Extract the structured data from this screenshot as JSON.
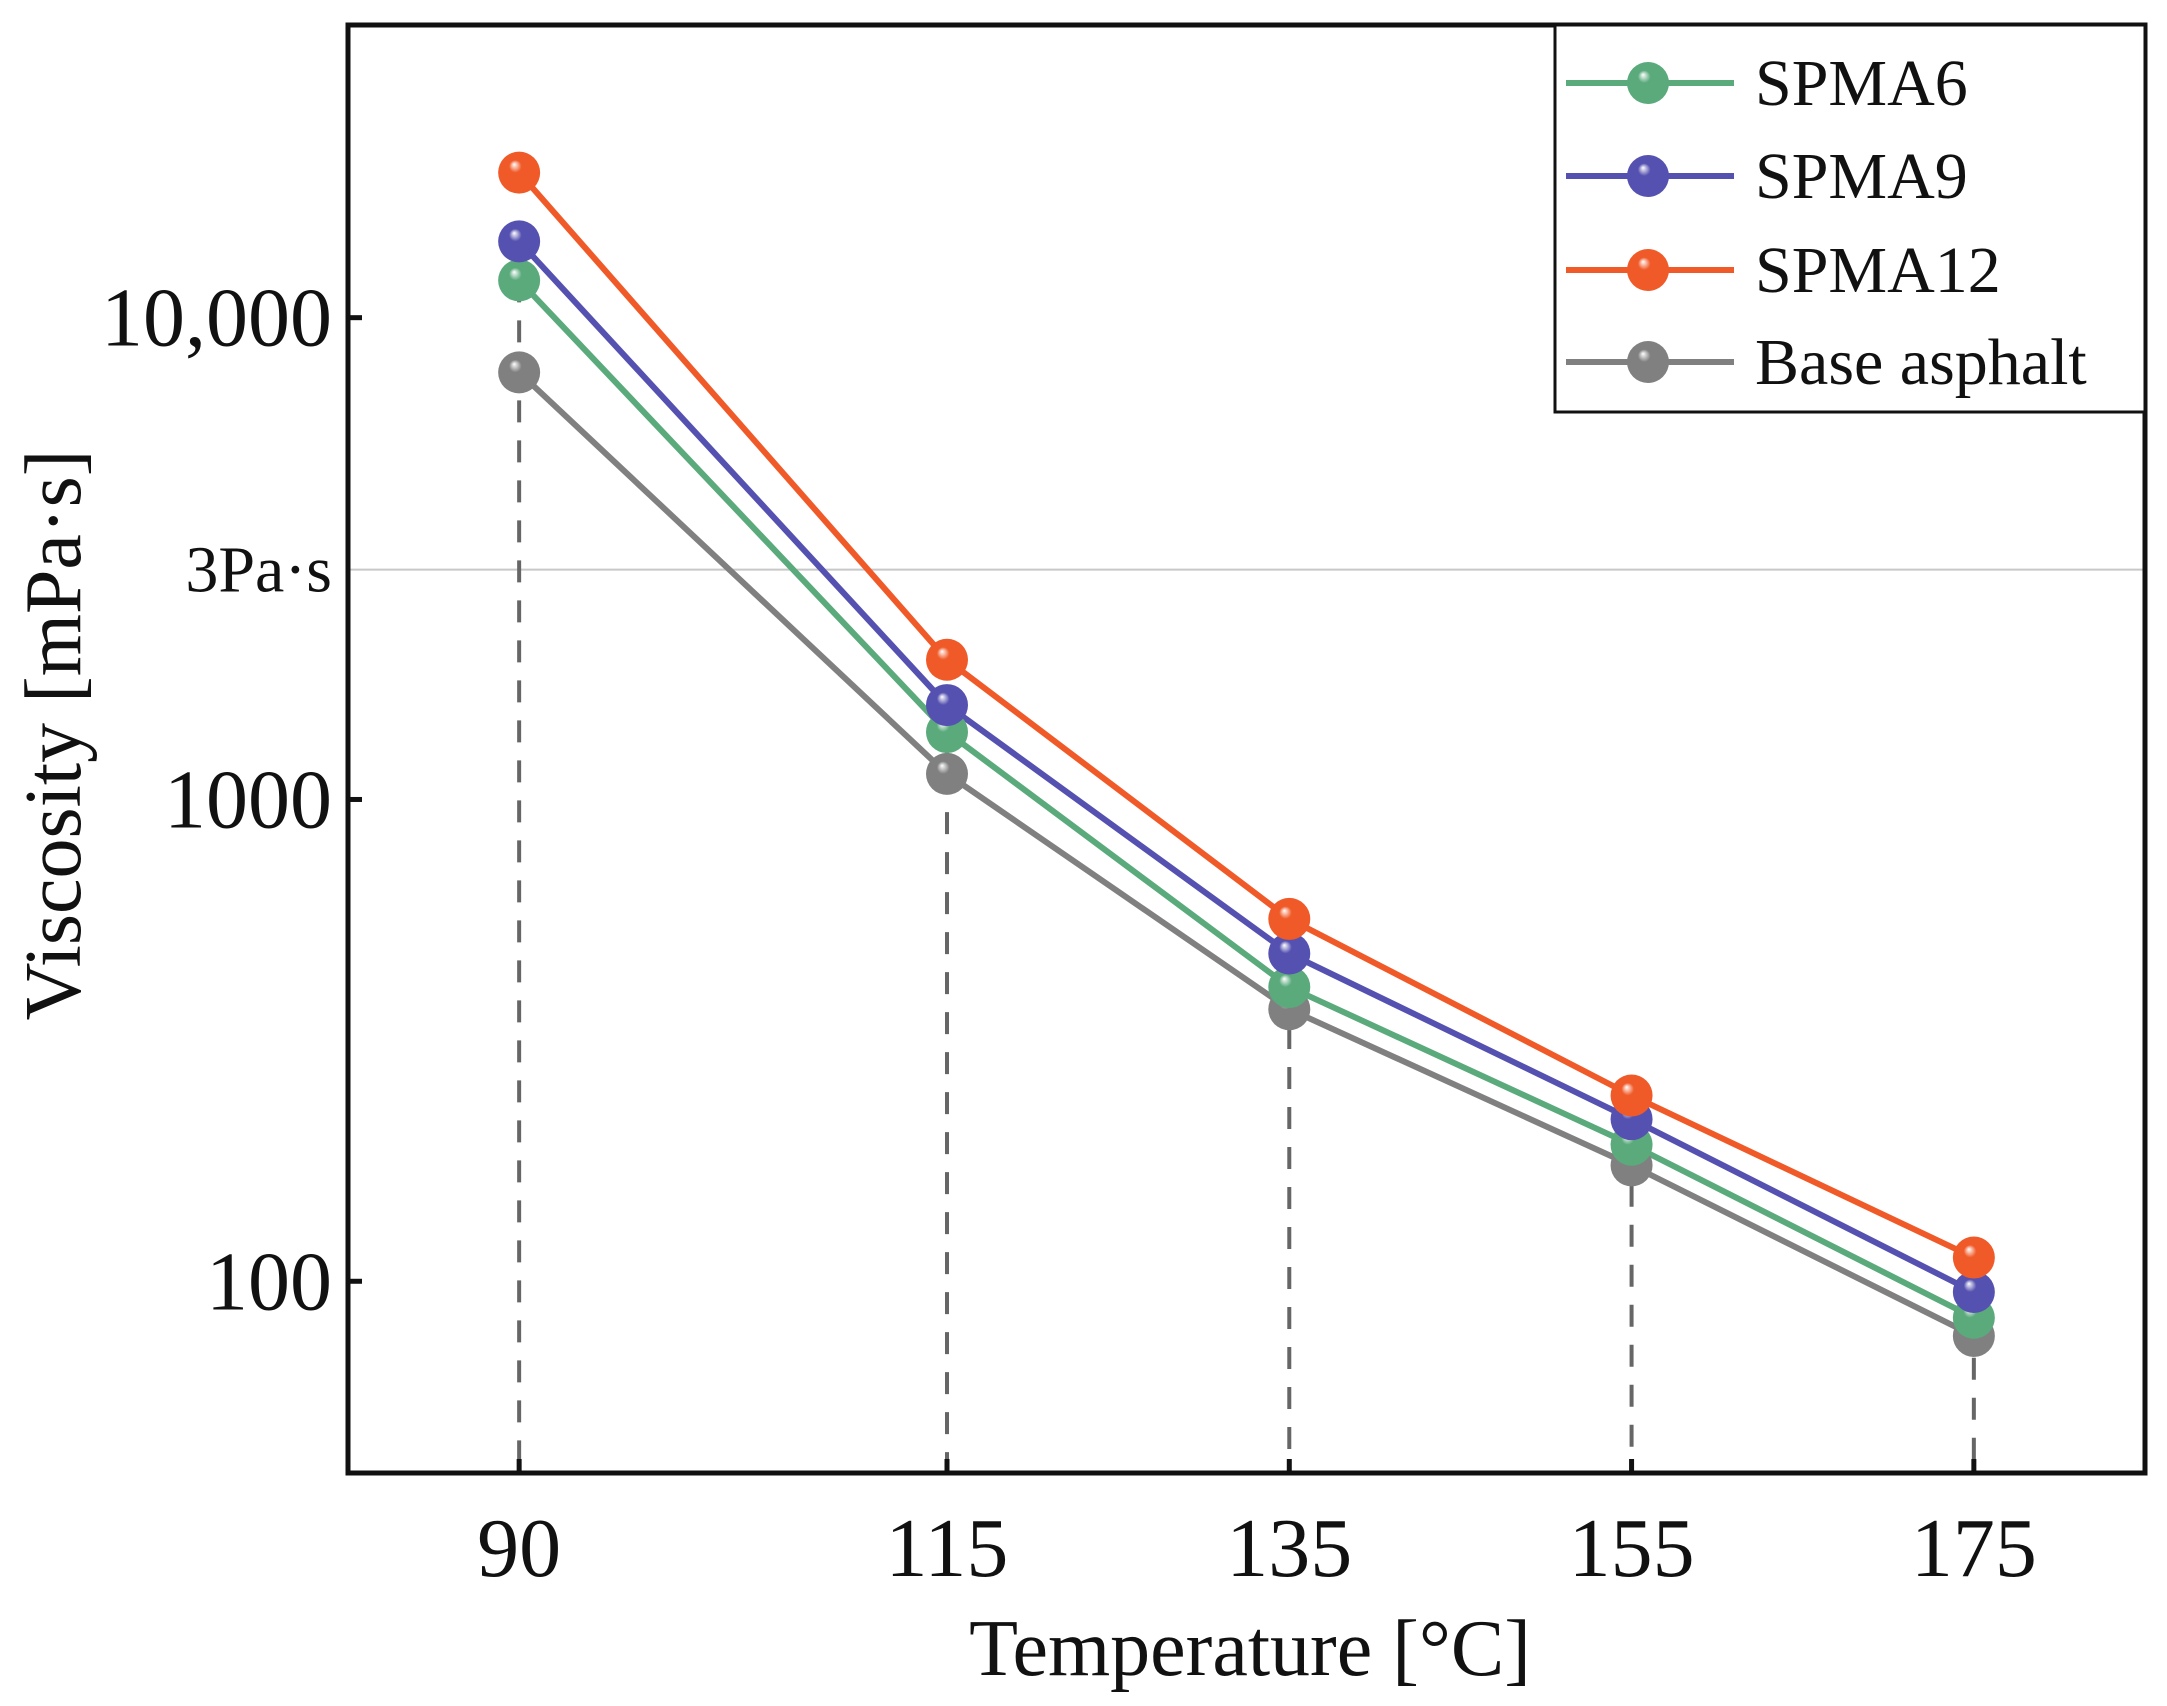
{
  "chart_data": {
    "type": "line",
    "title": "",
    "xlabel": "Temperature [°C]",
    "ylabel": "Viscosity [mPa·s]",
    "x": [
      90,
      115,
      135,
      155,
      175
    ],
    "x_tick_labels": [
      "90",
      "115",
      "135",
      "155",
      "175"
    ],
    "xlim": [
      80,
      185
    ],
    "yscale": "log",
    "ylim": [
      40,
      40500
    ],
    "y_ticks": [
      {
        "value": 10000,
        "label": "10,000"
      },
      {
        "value": 1000,
        "label": "1000"
      },
      {
        "value": 100,
        "label": "100"
      }
    ],
    "reference_line": {
      "value": 3000,
      "label": "3Pa·s",
      "color": "#c8c8c8"
    },
    "grid": false,
    "legend_position": "top-right",
    "series": [
      {
        "name": "SPMA6",
        "color": "#5aaa7c",
        "values": [
          11950,
          1380,
          408,
          192,
          84
        ]
      },
      {
        "name": "SPMA9",
        "color": "#5551b0",
        "values": [
          14400,
          1570,
          479,
          217,
          95
        ]
      },
      {
        "name": "SPMA12",
        "color": "#f05a28",
        "values": [
          20000,
          1950,
          565,
          243,
          112
        ]
      },
      {
        "name": "Base asphalt",
        "color": "#808080",
        "values": [
          7700,
          1130,
          367,
          174,
          77
        ]
      }
    ]
  }
}
